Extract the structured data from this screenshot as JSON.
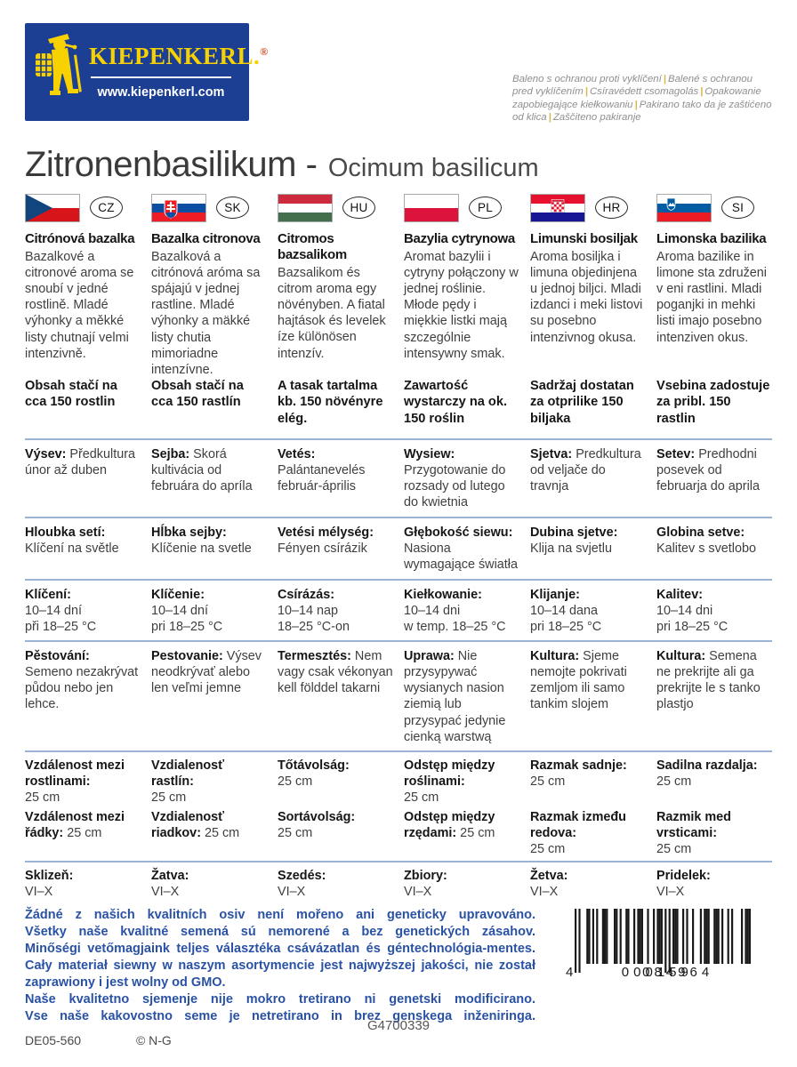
{
  "header": {
    "brand": "KIEPENKERL.",
    "brand_mark": "®",
    "website": "www.kiepenkerl.com",
    "protect_note_parts": [
      "Baleno s ochranou proti vyklíčení",
      "Balené s ochranou pred vyklíčením",
      "Csíravédett csomagolás",
      "Opakowanie zapobiegające kiełkowaniu",
      "Pakirano tako da je zaštićeno od klica",
      "Zaščiteno pakiranje"
    ]
  },
  "title": {
    "main": "Zitronenbasilikum -",
    "latin": "Ocimum basilicum"
  },
  "colors": {
    "logo_blue": "#1c3f94",
    "brand_yellow": "#f8d101",
    "divider_blue": "#9db3d6",
    "gmo_text_blue": "#2a52a4"
  },
  "languages": [
    {
      "code": "CZ",
      "name": "Citrónová bazalka",
      "description": "Bazalkové a citronové aroma se snoubí v jedné rostlině. Mladé výhonky a měkké listy chutnají velmi intenzivně.",
      "content": "Obsah stačí na cca 150 rostlin",
      "sowing": {
        "label": "Výsev:",
        "text": "Předkultura únor až duben"
      },
      "depth": {
        "label": "Hloubka setí:",
        "text": "Klíčení na světle"
      },
      "germination": {
        "label": "Klíčení:",
        "lines": [
          "10–14 dní",
          "při 18–25 °C"
        ]
      },
      "cultivation": {
        "label": "Pěstování:",
        "text": "Semeno nezakrývat půdou nebo jen lehce."
      },
      "spacing": [
        {
          "label": "Vzdálenost mezi rostlinami:",
          "value": "25 cm",
          "inline": false
        },
        {
          "label": "Vzdálenost mezi řádky:",
          "value": "25 cm",
          "inline": true
        }
      ],
      "harvest": {
        "label": "Sklizeň:",
        "value": "VI–X"
      }
    },
    {
      "code": "SK",
      "name": "Bazalka citronova",
      "description": "Bazalková a citrónová aróma sa spájajú v jednej rastline. Mladé výhonky a mäkké listy chutia mimoriadne intenzívne.",
      "content": "Obsah stačí na cca 150 rastlín",
      "sowing": {
        "label": "Sejba:",
        "text": "Skorá kultivácia od februára do apríla"
      },
      "depth": {
        "label": "Hĺbka sejby:",
        "text": "Klíčenie na svetle"
      },
      "germination": {
        "label": "Klíčenie:",
        "lines": [
          "10–14 dní",
          "pri 18–25 °C"
        ]
      },
      "cultivation": {
        "label": "Pestovanie:",
        "text": "Výsev neodkrývať alebo len veľmi jemne"
      },
      "spacing": [
        {
          "label": "Vzdialenosť rastlín:",
          "value": "25 cm",
          "inline": false
        },
        {
          "label": "Vzdialenosť riadkov:",
          "value": "25 cm",
          "inline": true
        }
      ],
      "harvest": {
        "label": "Žatva:",
        "value": "VI–X"
      }
    },
    {
      "code": "HU",
      "name": "Citromos bazsalikom",
      "description": "Bazsalikom és citrom aroma egy növényben. A fiatal hajtások és levelek íze különösen intenzív.",
      "content": "A tasak tartalma kb. 150 növényre elég.",
      "sowing": {
        "label": "Vetés:",
        "text": "Palántanevelés február-április"
      },
      "depth": {
        "label": "Vetési mélység:",
        "text": "Fényen csírázik"
      },
      "germination": {
        "label": "Csírázás:",
        "lines": [
          "10–14 nap",
          "18–25 °C-on"
        ]
      },
      "cultivation": {
        "label": "Termesztés:",
        "text": "Nem vagy csak vékonyan kell földdel takarni"
      },
      "spacing": [
        {
          "label": "Tőtávolság:",
          "value": "25 cm",
          "inline": false
        },
        {
          "label": "Sortávolság:",
          "value": "25 cm",
          "inline": false
        }
      ],
      "harvest": {
        "label": "Szedés:",
        "value": "VI–X"
      }
    },
    {
      "code": "PL",
      "name": "Bazylia cytrynowa",
      "description": "Aromat bazylii i cytryny połączony w jednej roślinie. Młode pędy i miękkie listki mają szczególnie intensywny smak.",
      "content": "Zawartość wystarczy na ok. 150 roślin",
      "sowing": {
        "label": "Wysiew:",
        "text": "Przygotowanie do rozsady od lutego do kwietnia"
      },
      "depth": {
        "label": "Głębokość siewu:",
        "text": "Nasiona wymagające światła"
      },
      "germination": {
        "label": "Kiełkowanie:",
        "lines": [
          "10–14 dni",
          "w temp. 18–25 °C"
        ]
      },
      "cultivation": {
        "label": "Uprawa:",
        "text": "Nie przysypywać wysianych nasion ziemią lub przysypać jedynie cienką warstwą"
      },
      "spacing": [
        {
          "label": "Odstęp między roślinami:",
          "value": "25 cm",
          "inline": false
        },
        {
          "label": "Odstęp między rzędami:",
          "value": "25 cm",
          "inline": true
        }
      ],
      "harvest": {
        "label": "Zbiory:",
        "value": "VI–X"
      }
    },
    {
      "code": "HR",
      "name": "Limunski bosiljak",
      "description": "Aroma bosiljka i limuna objedinjena u jednoj biljci. Mladi izdanci i meki listovi su posebno intenzivnog okusa.",
      "content": "Sadržaj dostatan za otprilike 150 biljaka",
      "sowing": {
        "label": "Sjetva:",
        "text": "Predkultura od veljače do travnja"
      },
      "depth": {
        "label": "Dubina sjetve:",
        "text": "Klija na svjetlu"
      },
      "germination": {
        "label": "Klijanje:",
        "lines": [
          "10–14 dana",
          "pri 18–25 °C"
        ]
      },
      "cultivation": {
        "label": "Kultura:",
        "text": "Sjeme nemojte pokrivati zemljom ili samo tankim slojem"
      },
      "spacing": [
        {
          "label": "Razmak sadnje:",
          "value": "25 cm",
          "inline": false
        },
        {
          "label": "Razmak između redova:",
          "value": "25 cm",
          "inline": false
        }
      ],
      "harvest": {
        "label": "Žetva:",
        "value": "VI–X"
      }
    },
    {
      "code": "SI",
      "name": "Limonska bazilika",
      "description": "Aroma bazilike in limone sta združeni v eni rastlini. Mladi poganjki in mehki listi imajo posebno intenziven okus.",
      "content": "Vsebina zadostuje za pribl. 150 rastlin",
      "sowing": {
        "label": "Setev:",
        "text": "Predhodni posevek od februarja do aprila"
      },
      "depth": {
        "label": "Globina setve:",
        "text": "Kalitev s svetlobo"
      },
      "germination": {
        "label": "Kalitev:",
        "lines": [
          "10–14 dni",
          "pri 18–25 °C"
        ]
      },
      "cultivation": {
        "label": "Kultura:",
        "text": "Semena ne prekrijte ali ga prekrijte le s tanko plastjo"
      },
      "spacing": [
        {
          "label": "Sadilna razdalja:",
          "value": "25 cm",
          "inline": false
        },
        {
          "label": "Razmik med vrsticami:",
          "value": "25 cm",
          "inline": false
        }
      ],
      "harvest": {
        "label": "Pridelek:",
        "value": "VI–X"
      }
    }
  ],
  "footer": {
    "gmo_lines": [
      "Žádné z našich kvalitních osiv není mořeno ani geneticky upravováno.",
      "Všetky naše kvalitné semená sú nemorené a bez genetických zásahov.",
      "Minőségi vetőmagjaink teljes választéka csávázatlan és géntechnológia-mentes.",
      "Cały materiał siewny w naszym asortymencie jest najwyższej jakości, nie został zaprawiony i jest wolny od GMO.",
      "Naše kvalitetno sjemenje nije mokro tretirano ni genetski modificirano.",
      "Vse naše kakovostno seme je netretirano in brez genskega inženiringa."
    ],
    "batch_code": "DE05-560",
    "copyright": "© N-G",
    "barcode": {
      "ean": "4000159084964",
      "display_groups": [
        "4",
        "000159",
        "084964"
      ]
    },
    "product_code": "G4700339"
  }
}
